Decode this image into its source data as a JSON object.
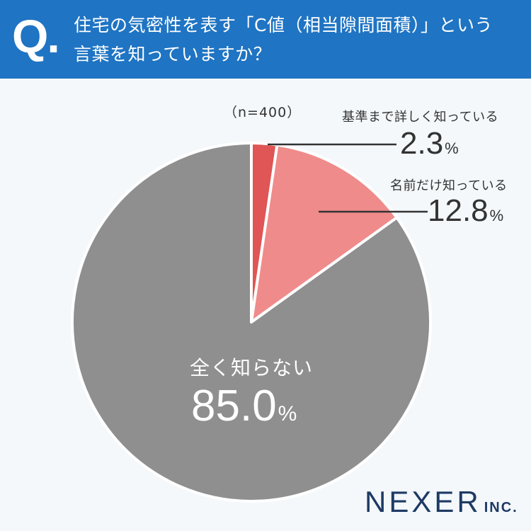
{
  "header": {
    "q_mark": "Q.",
    "question_line1": "住宅の気密性を表す「C値（相当隙間面積）」という",
    "question_line2": "言葉を知っていますか？"
  },
  "sample_size": "（n=400）",
  "percent_unit": "%",
  "logo": {
    "main": "NEXER",
    "sub": "INC."
  },
  "colors": {
    "header": "#1f74c3",
    "slice_know_well": "#e05555",
    "slice_name_only": "#f08b8b",
    "slice_unknown": "#8f8f8f",
    "background": "#f4f8fb"
  },
  "chart_data": {
    "type": "pie",
    "title": "住宅の気密性を表す「C値（相当隙間面積）」という言葉を知っていますか？",
    "n": 400,
    "categories": [
      "基準まで詳しく知っている",
      "名前だけ知っている",
      "全く知らない"
    ],
    "values": [
      2.3,
      12.8,
      85.0
    ],
    "labels": {
      "know_well": {
        "name": "基準まで詳しく知っている",
        "value": "2.3"
      },
      "name_only": {
        "name": "名前だけ知っている",
        "value": "12.8"
      },
      "unknown": {
        "name": "全く知らない",
        "value": "85.0"
      }
    }
  }
}
